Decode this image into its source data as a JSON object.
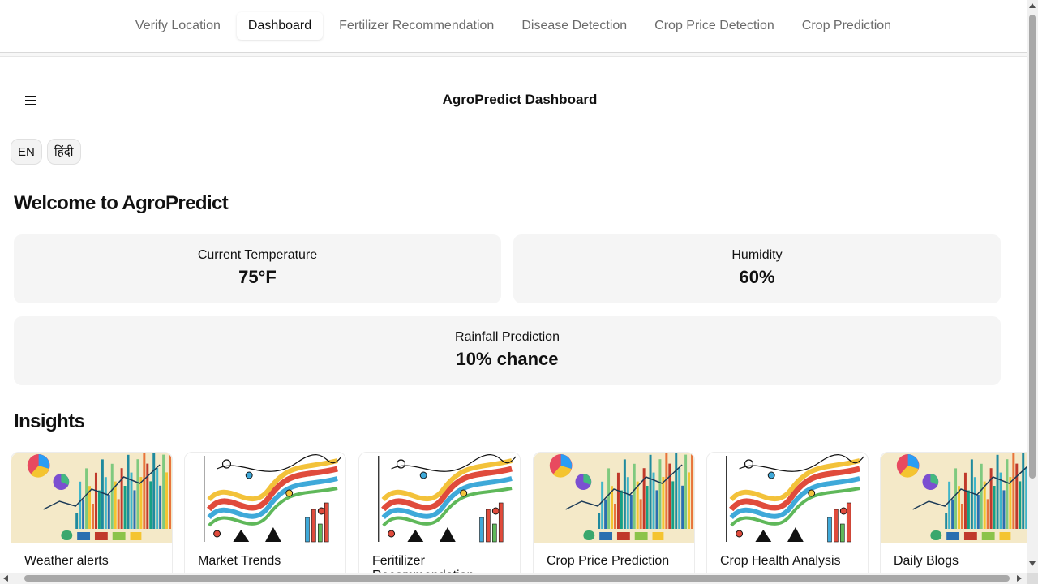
{
  "nav": {
    "tabs": [
      {
        "label": "Verify Location"
      },
      {
        "label": "Dashboard"
      },
      {
        "label": "Fertilizer Recommendation"
      },
      {
        "label": "Disease Detection"
      },
      {
        "label": "Crop Price Detection"
      },
      {
        "label": "Crop Prediction"
      }
    ],
    "active_tab": "Dashboard"
  },
  "header": {
    "menu_icon": "hamburger-menu-icon",
    "title": "AgroPredict Dashboard"
  },
  "language": {
    "options": [
      {
        "label": "EN"
      },
      {
        "label": "हिंदी"
      }
    ]
  },
  "welcome": {
    "heading": "Welcome to AgroPredict"
  },
  "stats": {
    "temperature": {
      "label": "Current Temperature",
      "value": "75°F"
    },
    "humidity": {
      "label": "Humidity",
      "value": "60%"
    },
    "rainfall": {
      "label": "Rainfall Prediction",
      "value": "10% chance"
    }
  },
  "insights": {
    "heading": "Insights",
    "cards": [
      {
        "label": "Weather alerts",
        "image": "colorful-bar-chart-illustration"
      },
      {
        "label": "Market Trends",
        "image": "line-graph-doodle-illustration"
      },
      {
        "label": "Feritilizer Recommendation",
        "image": "line-graph-doodle-illustration"
      },
      {
        "label": "Crop Price Prediction",
        "image": "colorful-bar-chart-illustration"
      },
      {
        "label": "Crop Health Analysis",
        "image": "line-graph-doodle-illustration"
      },
      {
        "label": "Daily Blogs",
        "image": "colorful-bar-chart-illustration"
      }
    ]
  },
  "colors": {
    "card_bg": "#f5f5f5",
    "text": "#111111",
    "nav_inactive": "#6b6b6b"
  }
}
